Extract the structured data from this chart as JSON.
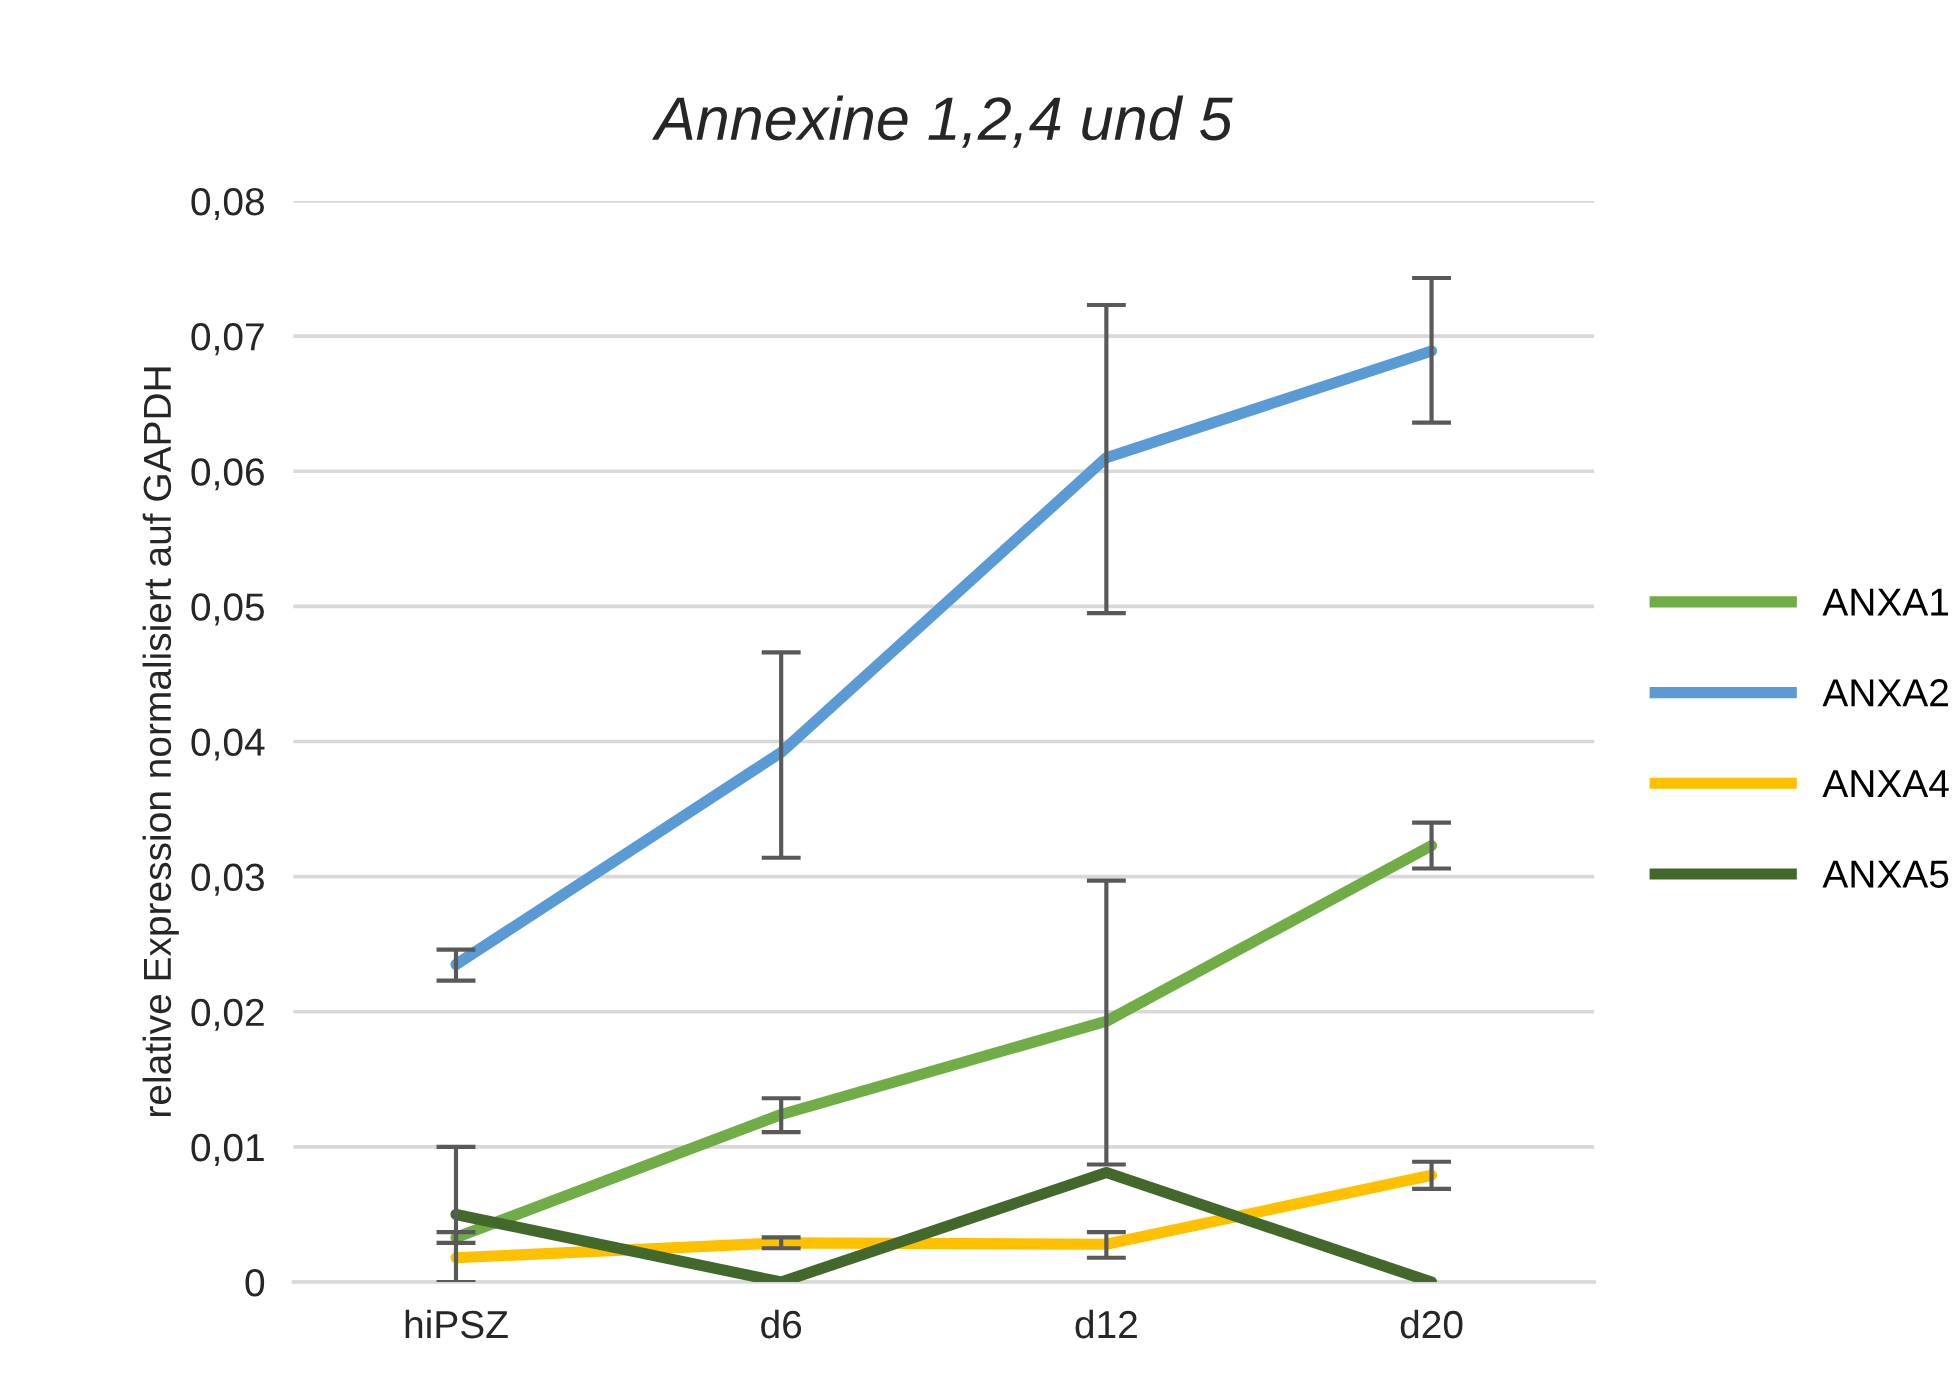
{
  "chart_data": {
    "type": "line",
    "title": "Annexine 1,2,4 und 5",
    "ylabel": "relative Expression normalisiert auf GAPDH",
    "categories": [
      "hiPSZ",
      "d6",
      "d12",
      "d20"
    ],
    "series": [
      {
        "name": "ANXA1",
        "color": "#70ad47",
        "values": [
          0.0033,
          0.0124,
          0.0193,
          0.0323
        ],
        "errors": [
          0.0004,
          [
            0.0111,
            0.0136
          ],
          [
            0.0087,
            0.0297
          ],
          [
            0.0306,
            0.034
          ]
        ]
      },
      {
        "name": "ANXA2",
        "color": "#5b9bd5",
        "values": [
          0.0235,
          0.0392,
          0.061,
          0.0689
        ],
        "errors": [
          [
            0.0223,
            0.0246
          ],
          [
            0.0314,
            0.0466
          ],
          [
            0.0495,
            0.0723
          ],
          [
            0.0636,
            0.0743
          ]
        ]
      },
      {
        "name": "ANXA4",
        "color": "#ffc000",
        "values": [
          0.0018,
          0.0029,
          0.0028,
          0.0079
        ],
        "errors": [
          null,
          [
            0.0025,
            0.0033
          ],
          [
            0.0018,
            0.0037
          ],
          [
            0.0069,
            0.0089
          ]
        ]
      },
      {
        "name": "ANXA5",
        "color": "#43682b",
        "values": [
          0.005,
          0,
          0.0081,
          0
        ],
        "errors": [
          [
            0,
            0.01
          ],
          null,
          null,
          null
        ]
      }
    ],
    "ylim": [
      0,
      0.08
    ],
    "yticks": [
      {
        "value": 0,
        "label": "0"
      },
      {
        "value": 0.01,
        "label": "0,01"
      },
      {
        "value": 0.02,
        "label": "0,02"
      },
      {
        "value": 0.03,
        "label": "0,03"
      },
      {
        "value": 0.04,
        "label": "0,04"
      },
      {
        "value": 0.05,
        "label": "0,05"
      },
      {
        "value": 0.06,
        "label": "0,06"
      },
      {
        "value": 0.07,
        "label": "0,07"
      },
      {
        "value": 0.08,
        "label": "0,08"
      }
    ],
    "grid": "y",
    "legend": "right",
    "marker": "none",
    "line_style": "solid"
  }
}
